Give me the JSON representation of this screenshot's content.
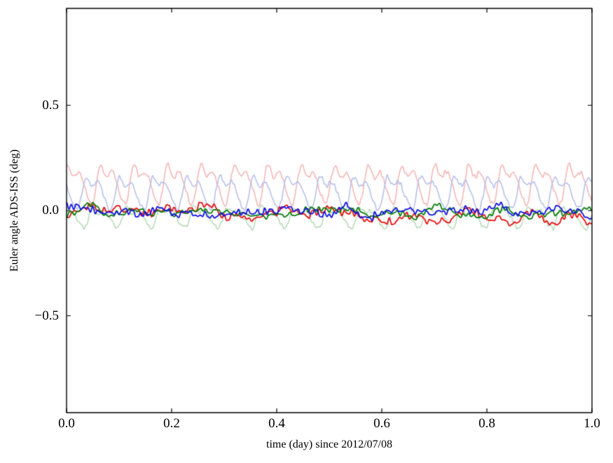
{
  "chart_data": {
    "type": "line",
    "title": "",
    "xlabel": "time (day) since 2012/07/08",
    "ylabel": "Euler angle ADS-ISS (deg)",
    "xlim": [
      0.0,
      1.0
    ],
    "ylim": [
      -0.96,
      0.96
    ],
    "xticks": [
      0.0,
      0.2,
      0.4,
      0.6,
      0.8,
      1.0
    ],
    "xtick_labels": [
      "0.0",
      "0.2",
      "0.4",
      "0.6",
      "0.8",
      "1.0"
    ],
    "yticks": [
      -0.5,
      0.0,
      0.5
    ],
    "ytick_labels": [
      "−0.5",
      "0.0",
      "0.5"
    ],
    "grid": false,
    "legend": null,
    "background": "#ffffff",
    "frame_color": "#000000",
    "samples": 1400,
    "series": [
      {
        "name": "pale-red-raw-euler-angle",
        "color": "#f6b6b6",
        "line_width": 1.6,
        "summary": "periodic (~15.7 cycles/day, ISS orbit), peaks ~0.25 deg, troughs ~0.04 deg",
        "gen": {
          "kind": "periodic",
          "mean": 0.135,
          "amp": 0.095,
          "period": 0.0637,
          "phase": 0.4,
          "skew": 0.55,
          "noise": 0.012,
          "seed": 11
        }
      },
      {
        "name": "pale-blue-raw-euler-angle",
        "color": "#b7c0ec",
        "line_width": 1.6,
        "summary": "periodic, peaks ~0.2 deg, troughs ~0.02 deg, phase-shifted from pale red",
        "gen": {
          "kind": "periodic",
          "mean": 0.095,
          "amp": 0.08,
          "period": 0.0637,
          "phase": 3.1,
          "skew": 0.5,
          "noise": 0.012,
          "seed": 22
        }
      },
      {
        "name": "pale-green-raw-euler-angle",
        "color": "#b9dab9",
        "line_width": 1.6,
        "summary": "periodic, small amplitude, peaks ~0.06 deg, troughs ~-0.1 deg",
        "gen": {
          "kind": "periodic",
          "mean": -0.028,
          "amp": 0.052,
          "period": 0.0637,
          "phase": 1.8,
          "skew": 0.5,
          "noise": 0.012,
          "seed": 33
        }
      },
      {
        "name": "red-filtered-euler-angle",
        "color": "#e60f0f",
        "line_width": 1.8,
        "summary": "noisy, near 0.0 deg, range roughly -0.08 to +0.05, slight negative drift after t=0.55",
        "gen": {
          "kind": "noise",
          "mean": 0.0,
          "coarse": 0.04,
          "fine": 0.02,
          "cells": 26,
          "fcells": 210,
          "drift": -0.025,
          "seed": 101
        }
      },
      {
        "name": "green-filtered-euler-angle",
        "color": "#0b7d0b",
        "line_width": 1.8,
        "summary": "noisy, near 0.0 deg, range roughly -0.06 to +0.05",
        "gen": {
          "kind": "noise",
          "mean": 0.0,
          "coarse": 0.032,
          "fine": 0.016,
          "cells": 24,
          "fcells": 200,
          "drift": -0.012,
          "seed": 202
        }
      },
      {
        "name": "blue-filtered-euler-angle",
        "color": "#1212e0",
        "line_width": 1.8,
        "summary": "noisy, near 0.0 deg, range roughly -0.06 to +0.05",
        "gen": {
          "kind": "noise",
          "mean": -0.005,
          "coarse": 0.034,
          "fine": 0.018,
          "cells": 28,
          "fcells": 220,
          "drift": 0.0,
          "seed": 303
        }
      }
    ]
  }
}
